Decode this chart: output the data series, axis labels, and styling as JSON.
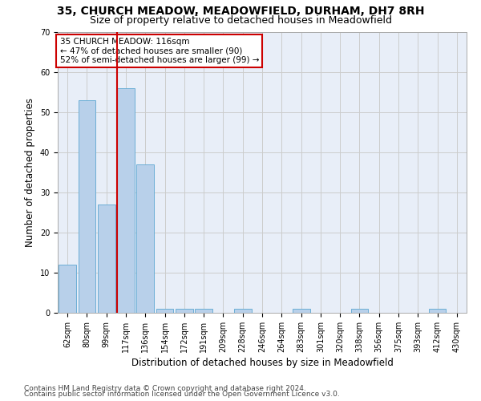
{
  "title_line1": "35, CHURCH MEADOW, MEADOWFIELD, DURHAM, DH7 8RH",
  "title_line2": "Size of property relative to detached houses in Meadowfield",
  "xlabel": "Distribution of detached houses by size in Meadowfield",
  "ylabel": "Number of detached properties",
  "bar_labels": [
    "62sqm",
    "80sqm",
    "99sqm",
    "117sqm",
    "136sqm",
    "154sqm",
    "172sqm",
    "191sqm",
    "209sqm",
    "228sqm",
    "246sqm",
    "264sqm",
    "283sqm",
    "301sqm",
    "320sqm",
    "338sqm",
    "356sqm",
    "375sqm",
    "393sqm",
    "412sqm",
    "430sqm"
  ],
  "bar_values": [
    12,
    53,
    27,
    56,
    37,
    1,
    1,
    1,
    0,
    1,
    0,
    0,
    1,
    0,
    0,
    1,
    0,
    0,
    0,
    1,
    0
  ],
  "bar_color": "#b8d0ea",
  "bar_edge_color": "#6baed6",
  "red_line_index": 3,
  "annotation_text": "35 CHURCH MEADOW: 116sqm\n← 47% of detached houses are smaller (90)\n52% of semi-detached houses are larger (99) →",
  "annotation_box_color": "#ffffff",
  "annotation_box_edge_color": "#cc0000",
  "ylim": [
    0,
    70
  ],
  "yticks": [
    0,
    10,
    20,
    30,
    40,
    50,
    60,
    70
  ],
  "grid_color": "#cccccc",
  "background_color": "#e8eef8",
  "footer_line1": "Contains HM Land Registry data © Crown copyright and database right 2024.",
  "footer_line2": "Contains public sector information licensed under the Open Government Licence v3.0.",
  "title_fontsize": 10,
  "subtitle_fontsize": 9,
  "xlabel_fontsize": 8.5,
  "ylabel_fontsize": 8.5,
  "tick_fontsize": 7,
  "annotation_fontsize": 7.5,
  "footer_fontsize": 6.5
}
